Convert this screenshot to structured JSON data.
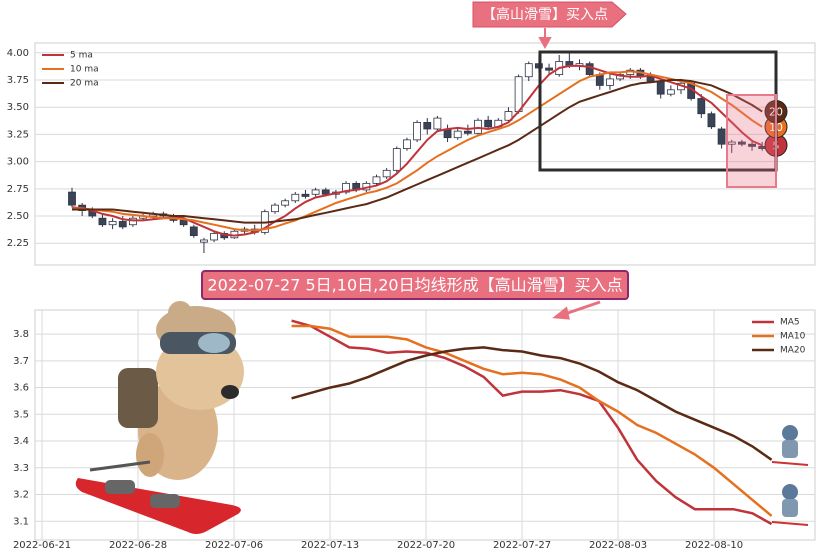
{
  "chart_data": [
    {
      "type": "candlestick",
      "annotation": "【高山滑雪】买入点",
      "up_color": "#ffffff",
      "down_color": "#3b4357",
      "edge_color": "#2e3447",
      "ylim": [
        2.05,
        4.09
      ],
      "yticks": [
        {
          "value": 2.25,
          "label": "2.25"
        },
        {
          "value": 2.5,
          "label": "2.50"
        },
        {
          "value": 2.75,
          "label": "2.75"
        },
        {
          "value": 3,
          "label": "3.00"
        },
        {
          "value": 3.25,
          "label": "3.25"
        },
        {
          "value": 3.5,
          "label": "3.50"
        },
        {
          "value": 3.75,
          "label": "3.75"
        },
        {
          "value": 4,
          "label": "4.00"
        }
      ],
      "grid": true,
      "legend": "upper left",
      "open": [
        2.72,
        2.6,
        2.55,
        2.48,
        2.42,
        2.45,
        2.42,
        2.48,
        2.5,
        2.52,
        2.5,
        2.46,
        2.4,
        2.26,
        2.28,
        2.34,
        2.3,
        2.36,
        2.38,
        2.35,
        2.54,
        2.6,
        2.64,
        2.7,
        2.7,
        2.74,
        2.7,
        2.72,
        2.8,
        2.74,
        2.8,
        2.86,
        2.92,
        3.12,
        3.2,
        3.36,
        3.3,
        3.3,
        3.22,
        3.28,
        3.26,
        3.38,
        3.32,
        3.38,
        3.46,
        3.78,
        3.9,
        3.86,
        3.8,
        3.92,
        3.88,
        3.9,
        3.8,
        3.7,
        3.76,
        3.8,
        3.84,
        3.78,
        3.74,
        3.62,
        3.66,
        3.72,
        3.58,
        3.44,
        3.3,
        3.16,
        3.18,
        3.16,
        3.14
      ],
      "high": [
        2.76,
        2.62,
        2.58,
        2.52,
        2.48,
        2.5,
        2.5,
        2.52,
        2.54,
        2.54,
        2.52,
        2.5,
        2.42,
        2.3,
        2.36,
        2.36,
        2.38,
        2.4,
        2.42,
        2.56,
        2.62,
        2.66,
        2.72,
        2.74,
        2.76,
        2.76,
        2.74,
        2.82,
        2.82,
        2.82,
        2.88,
        2.94,
        3.14,
        3.22,
        3.38,
        3.4,
        3.42,
        3.34,
        3.3,
        3.34,
        3.4,
        3.42,
        3.4,
        3.5,
        3.8,
        3.92,
        3.98,
        3.9,
        3.98,
        4.0,
        3.94,
        3.92,
        3.82,
        3.8,
        3.82,
        3.86,
        3.86,
        3.82,
        3.76,
        3.7,
        3.76,
        3.74,
        3.62,
        3.46,
        3.32,
        3.2,
        3.2,
        3.18,
        3.18
      ],
      "low": [
        2.58,
        2.5,
        2.48,
        2.4,
        2.38,
        2.38,
        2.4,
        2.46,
        2.47,
        2.48,
        2.44,
        2.4,
        2.3,
        2.16,
        2.26,
        2.28,
        2.29,
        2.34,
        2.33,
        2.33,
        2.52,
        2.58,
        2.62,
        2.66,
        2.68,
        2.68,
        2.66,
        2.7,
        2.72,
        2.72,
        2.78,
        2.84,
        2.9,
        3.1,
        3.18,
        3.25,
        3.28,
        3.18,
        3.2,
        3.24,
        3.25,
        3.3,
        3.3,
        3.36,
        3.44,
        3.74,
        3.82,
        3.8,
        3.78,
        3.86,
        3.84,
        3.78,
        3.66,
        3.66,
        3.74,
        3.76,
        3.76,
        3.72,
        3.58,
        3.6,
        3.62,
        3.56,
        3.4,
        3.3,
        3.12,
        3.08,
        3.14,
        3.1,
        3.1
      ],
      "close": [
        2.6,
        2.55,
        2.5,
        2.42,
        2.45,
        2.4,
        2.48,
        2.5,
        2.52,
        2.5,
        2.46,
        2.42,
        2.32,
        2.28,
        2.34,
        2.3,
        2.36,
        2.38,
        2.35,
        2.54,
        2.6,
        2.64,
        2.7,
        2.68,
        2.74,
        2.7,
        2.72,
        2.8,
        2.74,
        2.8,
        2.86,
        2.92,
        3.12,
        3.2,
        3.36,
        3.3,
        3.4,
        3.22,
        3.28,
        3.26,
        3.38,
        3.32,
        3.38,
        3.46,
        3.78,
        3.9,
        3.86,
        3.84,
        3.92,
        3.88,
        3.9,
        3.8,
        3.7,
        3.76,
        3.8,
        3.84,
        3.78,
        3.74,
        3.62,
        3.66,
        3.72,
        3.58,
        3.44,
        3.32,
        3.16,
        3.18,
        3.16,
        3.14,
        3.12
      ],
      "series": [
        {
          "name": "5 ma",
          "end_label": "5",
          "color": "#c0333a",
          "values": [
            2.58,
            2.57,
            2.55,
            2.52,
            2.5,
            2.47,
            2.46,
            2.46,
            2.47,
            2.48,
            2.49,
            2.48,
            2.44,
            2.4,
            2.36,
            2.33,
            2.32,
            2.33,
            2.35,
            2.39,
            2.45,
            2.5,
            2.57,
            2.63,
            2.67,
            2.69,
            2.71,
            2.73,
            2.74,
            2.76,
            2.78,
            2.82,
            2.89,
            2.98,
            3.09,
            3.2,
            3.28,
            3.3,
            3.31,
            3.3,
            3.31,
            3.3,
            3.32,
            3.36,
            3.46,
            3.58,
            3.7,
            3.8,
            3.86,
            3.88,
            3.88,
            3.87,
            3.84,
            3.81,
            3.79,
            3.78,
            3.78,
            3.79,
            3.76,
            3.73,
            3.7,
            3.67,
            3.6,
            3.54,
            3.45,
            3.36,
            3.27,
            3.19,
            3.15
          ]
        },
        {
          "name": "10 ma",
          "end_label": "10",
          "color": "#e5701f",
          "values": [
            2.57,
            2.57,
            2.56,
            2.55,
            2.54,
            2.52,
            2.51,
            2.5,
            2.49,
            2.48,
            2.48,
            2.47,
            2.46,
            2.44,
            2.42,
            2.4,
            2.38,
            2.37,
            2.37,
            2.38,
            2.4,
            2.43,
            2.46,
            2.5,
            2.54,
            2.58,
            2.62,
            2.65,
            2.68,
            2.71,
            2.73,
            2.76,
            2.8,
            2.86,
            2.92,
            2.99,
            3.05,
            3.1,
            3.15,
            3.2,
            3.24,
            3.27,
            3.3,
            3.33,
            3.38,
            3.44,
            3.5,
            3.56,
            3.62,
            3.68,
            3.74,
            3.78,
            3.8,
            3.82,
            3.82,
            3.83,
            3.82,
            3.8,
            3.78,
            3.76,
            3.74,
            3.72,
            3.68,
            3.64,
            3.58,
            3.52,
            3.45,
            3.38,
            3.32
          ]
        },
        {
          "name": "20 ma",
          "end_label": "20",
          "color": "#5b2a14",
          "values": [
            2.56,
            2.56,
            2.56,
            2.56,
            2.56,
            2.55,
            2.54,
            2.53,
            2.52,
            2.51,
            2.5,
            2.5,
            2.49,
            2.48,
            2.47,
            2.46,
            2.45,
            2.44,
            2.44,
            2.44,
            2.45,
            2.46,
            2.47,
            2.49,
            2.51,
            2.53,
            2.55,
            2.57,
            2.59,
            2.61,
            2.64,
            2.67,
            2.71,
            2.75,
            2.79,
            2.83,
            2.87,
            2.91,
            2.95,
            2.99,
            3.03,
            3.07,
            3.11,
            3.15,
            3.2,
            3.26,
            3.32,
            3.38,
            3.44,
            3.5,
            3.55,
            3.58,
            3.61,
            3.64,
            3.67,
            3.7,
            3.72,
            3.73,
            3.74,
            3.75,
            3.75,
            3.74,
            3.72,
            3.7,
            3.66,
            3.62,
            3.57,
            3.52,
            3.46
          ]
        }
      ]
    },
    {
      "type": "line",
      "title": "2022-07-27 5日,10日,20日均线形成【高山滑雪】买入点",
      "categories": [
        "2022-06-21",
        null,
        null,
        null,
        null,
        "2022-06-28",
        null,
        null,
        null,
        null,
        "2022-07-06",
        null,
        null,
        null,
        null,
        "2022-07-13",
        null,
        null,
        null,
        null,
        "2022-07-20",
        null,
        null,
        null,
        null,
        "2022-07-27",
        null,
        null,
        null,
        null,
        "2022-08-03",
        null,
        null,
        null,
        null,
        "2022-08-10",
        null,
        null,
        null
      ],
      "ylim": [
        3.03,
        3.89
      ],
      "yticks": [
        3.1,
        3.2,
        3.3,
        3.4,
        3.5,
        3.6,
        3.7,
        3.8
      ],
      "grid": true,
      "legend": "upper right",
      "series": [
        {
          "name": "MA5",
          "color": "#c0333a",
          "values": [
            null,
            null,
            null,
            null,
            null,
            null,
            null,
            null,
            null,
            null,
            null,
            null,
            null,
            3.85,
            3.83,
            3.79,
            3.75,
            3.745,
            3.73,
            3.735,
            3.73,
            3.71,
            3.68,
            3.64,
            3.57,
            3.585,
            3.585,
            3.59,
            3.575,
            3.55,
            3.45,
            3.33,
            3.25,
            3.19,
            3.145,
            3.145,
            3.145,
            3.13,
            3.09
          ]
        },
        {
          "name": "MA10",
          "color": "#e5701f",
          "values": [
            null,
            null,
            null,
            null,
            null,
            null,
            null,
            null,
            null,
            null,
            null,
            null,
            null,
            3.83,
            3.83,
            3.82,
            3.79,
            3.79,
            3.79,
            3.78,
            3.75,
            3.73,
            3.7,
            3.67,
            3.65,
            3.655,
            3.65,
            3.63,
            3.6,
            3.55,
            3.51,
            3.46,
            3.43,
            3.39,
            3.35,
            3.3,
            3.24,
            3.18,
            3.12
          ]
        },
        {
          "name": "MA20",
          "color": "#5b2a14",
          "values": [
            null,
            null,
            null,
            null,
            null,
            null,
            null,
            null,
            null,
            null,
            null,
            null,
            null,
            3.56,
            3.58,
            3.6,
            3.615,
            3.64,
            3.67,
            3.7,
            3.72,
            3.735,
            3.745,
            3.75,
            3.74,
            3.735,
            3.72,
            3.71,
            3.69,
            3.66,
            3.62,
            3.59,
            3.55,
            3.51,
            3.48,
            3.45,
            3.42,
            3.38,
            3.33
          ]
        }
      ]
    }
  ]
}
